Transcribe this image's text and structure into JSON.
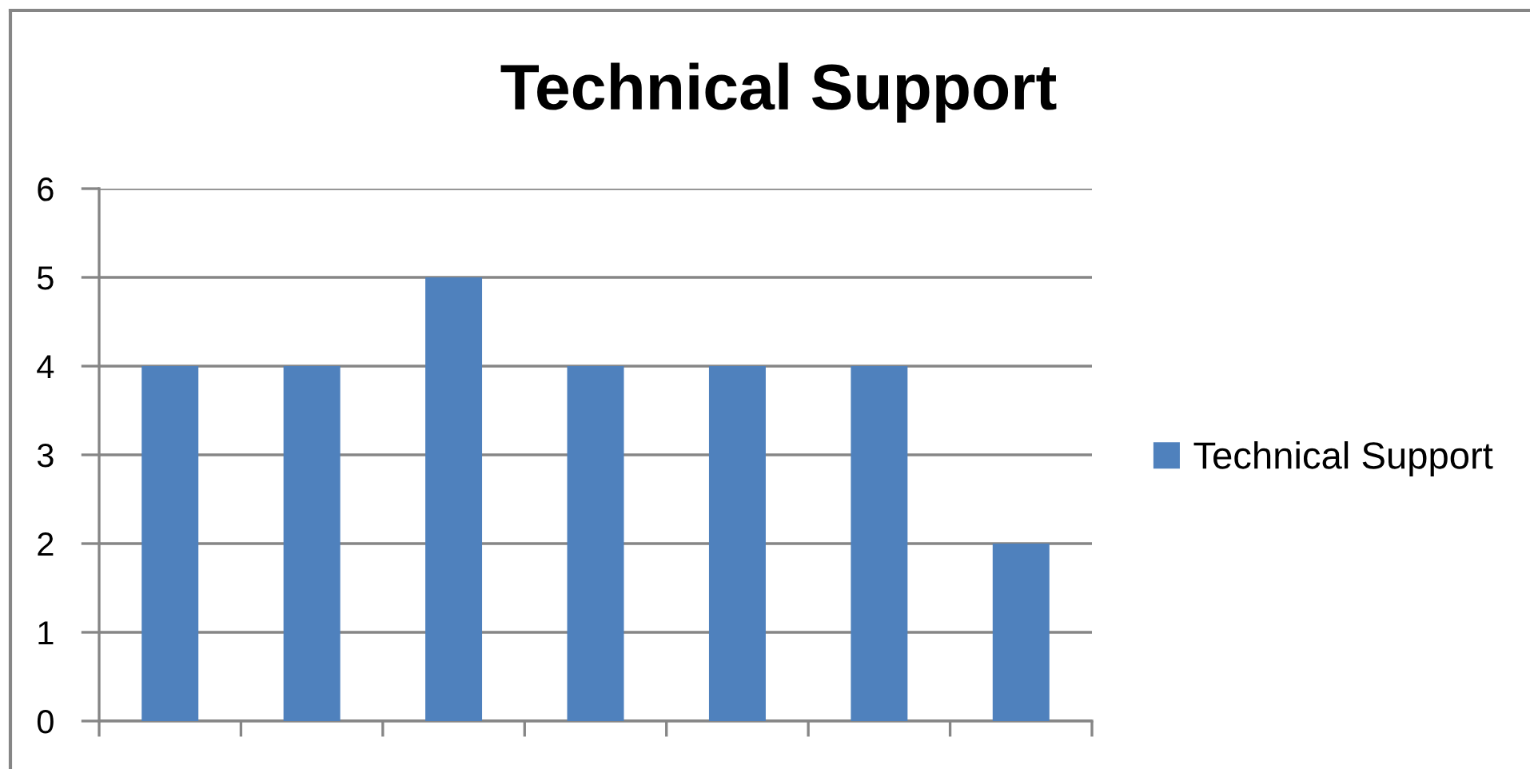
{
  "chart_data": {
    "type": "bar",
    "title": "Technical Support",
    "categories": [
      null,
      null,
      null,
      null,
      null,
      null,
      null
    ],
    "series": [
      {
        "name": "Technical Support",
        "color": "#4f81bd",
        "values": [
          4,
          4,
          5,
          4,
          4,
          4,
          2
        ]
      }
    ],
    "ylim": [
      0,
      6
    ],
    "yticks": [
      0,
      1,
      2,
      3,
      4,
      5,
      6
    ],
    "grid": "y",
    "legend": "right"
  }
}
